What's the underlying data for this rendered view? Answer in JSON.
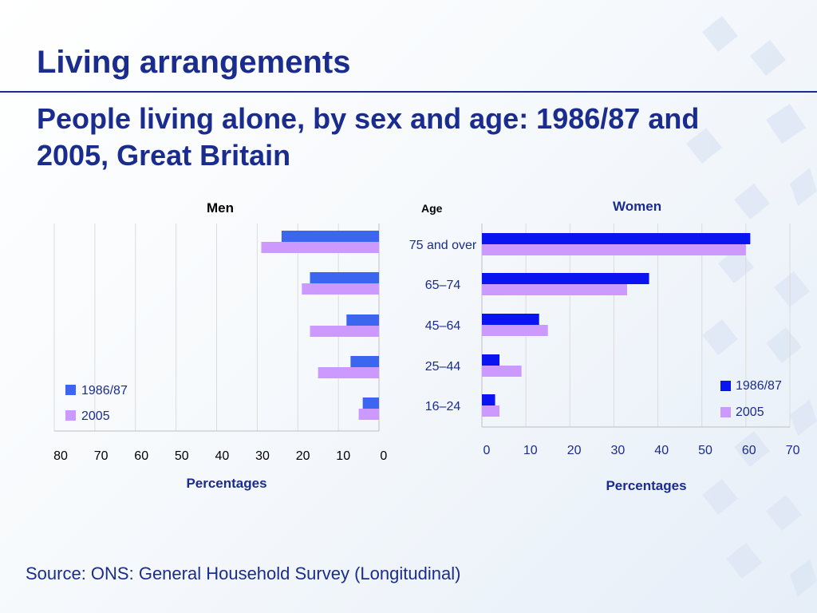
{
  "title": "Living arrangements",
  "subtitle": "People living alone, by sex and age: 1986/87 and 2005, Great Britain",
  "source": "Source: ONS: General Household Survey (Longitudinal)",
  "age_label": "Age",
  "colors": {
    "men_1986": "#3a66f0",
    "women_1986": "#0a14f0",
    "y2005": "#cc99ff",
    "title_blue": "#1a2c8e"
  },
  "chart_data": [
    {
      "type": "bar",
      "title": "Men",
      "orientation": "horizontal",
      "x_reversed": true,
      "categories": [
        "75 and over",
        "65–74",
        "45–64",
        "25–44",
        "16–24"
      ],
      "series": [
        {
          "name": "1986/87",
          "values": [
            24,
            17,
            8,
            7,
            4
          ]
        },
        {
          "name": "2005",
          "values": [
            29,
            19,
            17,
            15,
            5
          ]
        }
      ],
      "xlabel": "Percentages",
      "ylabel": "Age",
      "xlim": [
        0,
        80
      ],
      "xticks": [
        "80",
        "70",
        "60",
        "50",
        "40",
        "30",
        "20",
        "10",
        "0"
      ],
      "legend": "bottom-left",
      "grid": true
    },
    {
      "type": "bar",
      "title": "Women",
      "orientation": "horizontal",
      "categories": [
        "75 and over",
        "65–74",
        "45–64",
        "25–44",
        "16–24"
      ],
      "series": [
        {
          "name": "1986/87",
          "values": [
            61,
            38,
            13,
            4,
            3
          ]
        },
        {
          "name": "2005",
          "values": [
            60,
            33,
            15,
            9,
            4
          ]
        }
      ],
      "xlabel": "Percentages",
      "xlim": [
        0,
        70
      ],
      "xticks": [
        "0",
        "10",
        "20",
        "30",
        "40",
        "50",
        "60",
        "70"
      ],
      "legend": "bottom-right",
      "grid": true
    }
  ]
}
